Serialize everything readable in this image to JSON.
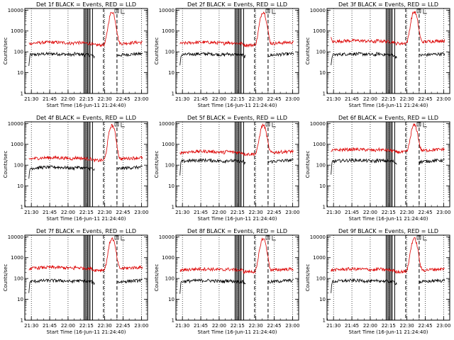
{
  "chart_data": [
    {
      "type": "line",
      "title": "Det 1f BLACK = Events, RED = LLD",
      "xlabel": "Start Time (16-Jun-11 21:24:40)",
      "ylabel": "Counts/sec",
      "x_tick_labels": [
        "21:30",
        "21:45",
        "22:00",
        "22:15",
        "22:30",
        "22:45",
        "23:00"
      ],
      "y_tick_labels": [
        "1",
        "10",
        "100",
        "1000",
        "10000"
      ],
      "yscale": "log",
      "ylim": [
        1,
        12000
      ],
      "xlim": [
        "21:24:40",
        "23:05:00"
      ],
      "series": [
        {
          "color": "#000000",
          "level": 70,
          "start_level": 20
        },
        {
          "color": "#dd0000",
          "level": 250,
          "start_level": 250
        }
      ],
      "peak": {
        "time": "22:36",
        "value": 8000
      },
      "solid_vlines": [
        "22:13",
        "22:14",
        "22:15",
        "22:16",
        "22:17",
        "22:18",
        "22:20"
      ],
      "dashed_vlines": [
        "22:29",
        "22:40"
      ]
    },
    {
      "type": "line",
      "title": "Det 2f BLACK = Events, RED = LLD",
      "xlabel": "Start Time (16-Jun-11 21:24:40)",
      "ylabel": "Counts/sec",
      "x_tick_labels": [
        "21:30",
        "21:45",
        "22:00",
        "22:15",
        "22:30",
        "22:45",
        "23:00"
      ],
      "y_tick_labels": [
        "1",
        "10",
        "100",
        "1000",
        "10000"
      ],
      "yscale": "log",
      "ylim": [
        1,
        12000
      ],
      "xlim": [
        "21:24:40",
        "23:05:00"
      ],
      "series": [
        {
          "color": "#000000",
          "level": 70,
          "start_level": 20
        },
        {
          "color": "#dd0000",
          "level": 250,
          "start_level": 250
        }
      ],
      "peak": {
        "time": "22:36",
        "value": 8000
      },
      "solid_vlines": [
        "22:13",
        "22:14",
        "22:15",
        "22:16",
        "22:17",
        "22:18",
        "22:20"
      ],
      "dashed_vlines": [
        "22:29",
        "22:40"
      ]
    },
    {
      "type": "line",
      "title": "Det 3f BLACK = Events, RED = LLD",
      "xlabel": "Start Time (16-Jun-11 21:24:40)",
      "ylabel": "Counts/sec",
      "x_tick_labels": [
        "21:30",
        "21:45",
        "22:00",
        "22:15",
        "22:30",
        "22:45",
        "23:00"
      ],
      "y_tick_labels": [
        "1",
        "10",
        "100",
        "1000",
        "10000"
      ],
      "yscale": "log",
      "ylim": [
        1,
        12000
      ],
      "xlim": [
        "21:24:40",
        "23:05:00"
      ],
      "series": [
        {
          "color": "#000000",
          "level": 70,
          "start_level": 20
        },
        {
          "color": "#dd0000",
          "level": 300,
          "start_level": 450
        }
      ],
      "peak": {
        "time": "22:36",
        "value": 8000
      },
      "solid_vlines": [
        "22:13",
        "22:14",
        "22:15",
        "22:16",
        "22:17",
        "22:18",
        "22:20"
      ],
      "dashed_vlines": [
        "22:29",
        "22:40"
      ]
    },
    {
      "type": "line",
      "title": "Det 4f BLACK = Events, RED = LLD",
      "xlabel": "Start Time (16-Jun-11 21:24:40)",
      "ylabel": "Counts/sec",
      "x_tick_labels": [
        "21:30",
        "21:45",
        "22:00",
        "22:15",
        "22:30",
        "22:45",
        "23:00"
      ],
      "y_tick_labels": [
        "1",
        "10",
        "100",
        "1000",
        "10000"
      ],
      "yscale": "log",
      "ylim": [
        1,
        12000
      ],
      "xlim": [
        "21:24:40",
        "23:05:00"
      ],
      "series": [
        {
          "color": "#000000",
          "level": 70,
          "start_level": 20
        },
        {
          "color": "#dd0000",
          "level": 200,
          "start_level": 200
        }
      ],
      "peak": {
        "time": "22:36",
        "value": 8000
      },
      "solid_vlines": [
        "22:13",
        "22:14",
        "22:15",
        "22:16",
        "22:17",
        "22:18",
        "22:20"
      ],
      "dashed_vlines": [
        "22:29",
        "22:40"
      ]
    },
    {
      "type": "line",
      "title": "Det 5f BLACK = Events, RED = LLD",
      "xlabel": "Start Time (16-Jun-11 21:24:40)",
      "ylabel": "Counts/sec",
      "x_tick_labels": [
        "21:30",
        "21:45",
        "22:00",
        "22:15",
        "22:30",
        "22:45",
        "23:00"
      ],
      "y_tick_labels": [
        "1",
        "10",
        "100",
        "1000",
        "10000"
      ],
      "yscale": "log",
      "ylim": [
        1,
        12000
      ],
      "xlim": [
        "21:24:40",
        "23:05:00"
      ],
      "series": [
        {
          "color": "#000000",
          "level": 150,
          "start_level": 30
        },
        {
          "color": "#dd0000",
          "level": 400,
          "start_level": 400
        }
      ],
      "peak": {
        "time": "22:36",
        "value": 8000
      },
      "solid_vlines": [
        "22:13",
        "22:14",
        "22:15",
        "22:16",
        "22:17",
        "22:18",
        "22:20"
      ],
      "dashed_vlines": [
        "22:29",
        "22:40"
      ]
    },
    {
      "type": "line",
      "title": "Det 6f BLACK = Events, RED = LLD",
      "xlabel": "Start Time (16-Jun-11 21:24:40)",
      "ylabel": "Counts/sec",
      "x_tick_labels": [
        "21:30",
        "21:45",
        "22:00",
        "22:15",
        "22:30",
        "22:45",
        "23:00"
      ],
      "y_tick_labels": [
        "1",
        "10",
        "100",
        "1000",
        "10000"
      ],
      "yscale": "log",
      "ylim": [
        1,
        12000
      ],
      "xlim": [
        "21:24:40",
        "23:05:00"
      ],
      "series": [
        {
          "color": "#000000",
          "level": 150,
          "start_level": 30
        },
        {
          "color": "#dd0000",
          "level": 500,
          "start_level": 500
        }
      ],
      "peak": {
        "time": "22:36",
        "value": 8000
      },
      "solid_vlines": [
        "22:13",
        "22:14",
        "22:15",
        "22:16",
        "22:17",
        "22:18",
        "22:20"
      ],
      "dashed_vlines": [
        "22:29",
        "22:40"
      ]
    },
    {
      "type": "line",
      "title": "Det 7f BLACK = Events, RED = LLD",
      "xlabel": "Start Time (16-Jun-11 21:24:40)",
      "ylabel": "Counts/sec",
      "x_tick_labels": [
        "21:30",
        "21:45",
        "22:00",
        "22:15",
        "22:30",
        "22:45",
        "23:00"
      ],
      "y_tick_labels": [
        "1",
        "10",
        "100",
        "1000",
        "10000"
      ],
      "yscale": "log",
      "ylim": [
        1,
        12000
      ],
      "xlim": [
        "21:24:40",
        "23:05:00"
      ],
      "series": [
        {
          "color": "#000000",
          "level": 70,
          "start_level": 20
        },
        {
          "color": "#dd0000",
          "level": 300,
          "start_level": 300
        }
      ],
      "peak": {
        "time": "22:36",
        "value": 8000
      },
      "solid_vlines": [
        "22:13",
        "22:14",
        "22:15",
        "22:16",
        "22:17",
        "22:18",
        "22:20"
      ],
      "dashed_vlines": [
        "22:29",
        "22:40"
      ]
    },
    {
      "type": "line",
      "title": "Det 8f BLACK = Events, RED = LLD",
      "xlabel": "Start Time (16-Jun-11 21:24:40)",
      "ylabel": "Counts/sec",
      "x_tick_labels": [
        "21:30",
        "21:45",
        "22:00",
        "22:15",
        "22:30",
        "22:45",
        "23:00"
      ],
      "y_tick_labels": [
        "1",
        "10",
        "100",
        "1000",
        "10000"
      ],
      "yscale": "log",
      "ylim": [
        1,
        12000
      ],
      "xlim": [
        "21:24:40",
        "23:05:00"
      ],
      "series": [
        {
          "color": "#000000",
          "level": 70,
          "start_level": 20
        },
        {
          "color": "#dd0000",
          "level": 250,
          "start_level": 250
        }
      ],
      "peak": {
        "time": "22:36",
        "value": 8000
      },
      "solid_vlines": [
        "22:13",
        "22:14",
        "22:15",
        "22:16",
        "22:17",
        "22:18",
        "22:20"
      ],
      "dashed_vlines": [
        "22:29",
        "22:40"
      ]
    },
    {
      "type": "line",
      "title": "Det 9f BLACK = Events, RED = LLD",
      "xlabel": "Start Time (16-Jun-11 21:24:40)",
      "ylabel": "Counts/sec",
      "x_tick_labels": [
        "21:30",
        "21:45",
        "22:00",
        "22:15",
        "22:30",
        "22:45",
        "23:00"
      ],
      "y_tick_labels": [
        "1",
        "10",
        "100",
        "1000",
        "10000"
      ],
      "yscale": "log",
      "ylim": [
        1,
        12000
      ],
      "xlim": [
        "21:24:40",
        "23:05:00"
      ],
      "series": [
        {
          "color": "#000000",
          "level": 70,
          "start_level": 20
        },
        {
          "color": "#dd0000",
          "level": 250,
          "start_level": 250
        }
      ],
      "peak": {
        "time": "22:36",
        "value": 8000
      },
      "solid_vlines": [
        "22:13",
        "22:14",
        "22:15",
        "22:16",
        "22:17",
        "22:18",
        "22:20"
      ],
      "dashed_vlines": [
        "22:29",
        "22:40"
      ]
    }
  ]
}
